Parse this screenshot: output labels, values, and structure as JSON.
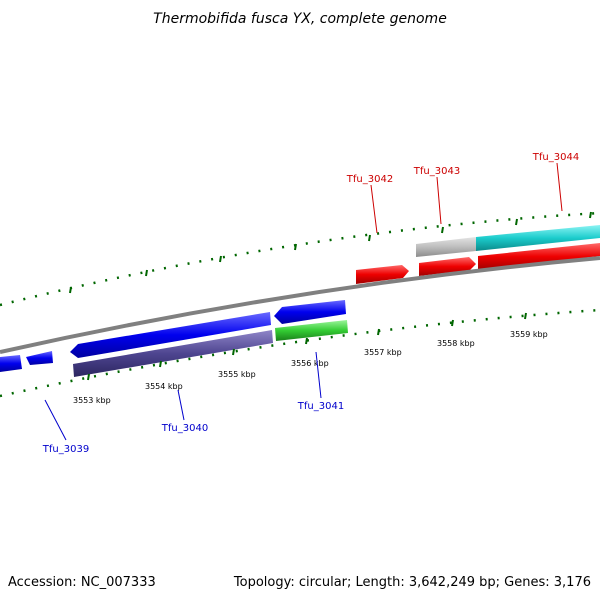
{
  "title": "Thermobifida fusca YX, complete genome",
  "footer": {
    "accession": "Accession: NC_007333",
    "summary": "Topology: circular; Length: 3,642,249 bp; Genes: 3,176"
  },
  "scale_labels": [
    "3553 kbp",
    "3554 kbp",
    "3555 kbp",
    "3556 kbp",
    "3557 kbp",
    "3558 kbp",
    "3559 kbp"
  ],
  "genes": [
    {
      "label": "Tfu_3039",
      "strand": "reverse",
      "color": "#0000cc"
    },
    {
      "label": "Tfu_3040",
      "strand": "reverse",
      "color": "#0000cc"
    },
    {
      "label": "Tfu_3041",
      "strand": "reverse",
      "color": "#0000cc"
    },
    {
      "label": "Tfu_3042",
      "strand": "forward",
      "color": "#cc0000"
    },
    {
      "label": "Tfu_3043",
      "strand": "forward",
      "color": "#cc0000"
    },
    {
      "label": "Tfu_3044",
      "strand": "forward",
      "color": "#cc0000"
    }
  ],
  "colors": {
    "backbone": "#808080",
    "tick": "#006600",
    "forward_cds": "#ee1111",
    "reverse_cds": "#1111ee",
    "rna": "#44cc44",
    "misc_feature": "#5a4f9a",
    "gene_grey": "#c0c0c0",
    "gene_cyan": "#22cccc"
  }
}
